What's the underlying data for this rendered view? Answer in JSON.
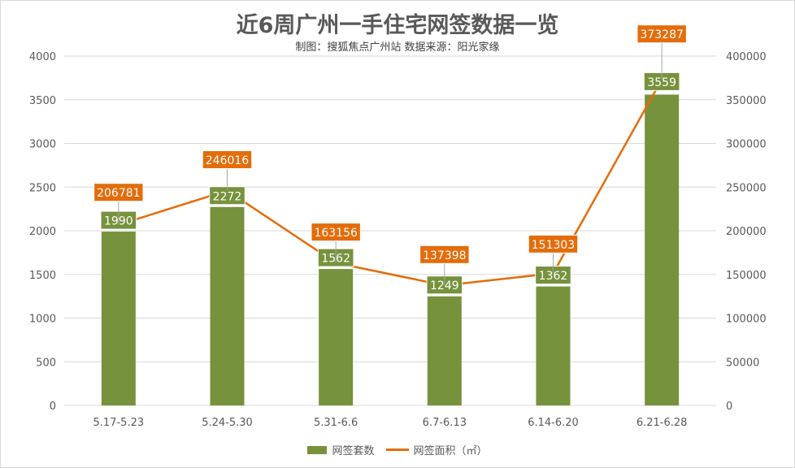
{
  "colors": {
    "bar": "#76923c",
    "line": "#e46c0a",
    "grid": "#d9d9d9",
    "axis_text": "#595959",
    "label_text": "#ffffff"
  },
  "chart_data": {
    "type": "bar",
    "title": "近6周广州一手住宅网签数据一览",
    "subtitle": "制图：搜狐焦点广州站   数据来源：阳光家缘",
    "categories": [
      "5.17-5.23",
      "5.24-5.30",
      "5.31-6.6",
      "6.7-6.13",
      "6.14-6.20",
      "6.21-6.28"
    ],
    "series": [
      {
        "name": "网签套数",
        "type": "bar",
        "axis": "left",
        "values": [
          1990,
          2272,
          1562,
          1249,
          1362,
          3559
        ]
      },
      {
        "name": "网签面积（㎡）",
        "type": "line",
        "axis": "right",
        "values": [
          206781,
          246016,
          163156,
          137398,
          151303,
          373287
        ]
      }
    ],
    "y_left": {
      "lim": [
        0,
        4000
      ],
      "ticks": [
        "0",
        "500",
        "1000",
        "1500",
        "2000",
        "2500",
        "3000",
        "3500",
        "4000"
      ]
    },
    "y_right": {
      "lim": [
        0,
        400000
      ],
      "ticks": [
        "0",
        "50000",
        "100000",
        "150000",
        "200000",
        "250000",
        "300000",
        "350000",
        "400000"
      ]
    },
    "grid": true,
    "legend_position": "bottom-center"
  }
}
